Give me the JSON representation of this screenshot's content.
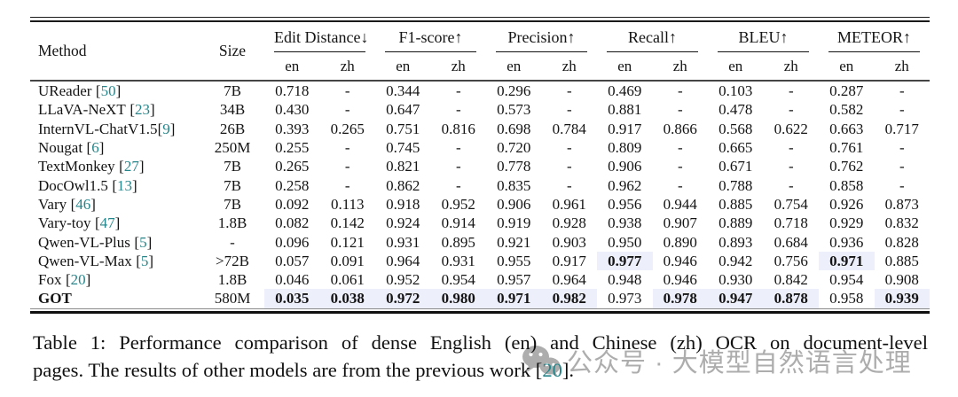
{
  "table": {
    "col_method": "Method",
    "col_size": "Size",
    "sub_en": "en",
    "sub_zh": "zh",
    "groups": [
      {
        "label": "Edit Distance",
        "arrow": "↓"
      },
      {
        "label": "F1-score",
        "arrow": "↑"
      },
      {
        "label": "Precision",
        "arrow": "↑"
      },
      {
        "label": "Recall",
        "arrow": "↑"
      },
      {
        "label": "BLEU",
        "arrow": "↑"
      },
      {
        "label": "METEOR",
        "arrow": "↑"
      }
    ],
    "cite_color": "#25858a",
    "highlight_color": "#edeffa",
    "rows": [
      {
        "method": "UReader",
        "cite": "50",
        "nospace": false,
        "bold_method": false,
        "size": "7B",
        "values": [
          "0.718",
          "-",
          "0.344",
          "-",
          "0.296",
          "-",
          "0.469",
          "-",
          "0.103",
          "-",
          "0.287",
          "-"
        ],
        "emph": []
      },
      {
        "method": "LLaVA-NeXT",
        "cite": "23",
        "nospace": false,
        "bold_method": false,
        "size": "34B",
        "values": [
          "0.430",
          "-",
          "0.647",
          "-",
          "0.573",
          "-",
          "0.881",
          "-",
          "0.478",
          "-",
          "0.582",
          "-"
        ],
        "emph": []
      },
      {
        "method": "InternVL-ChatV1.5",
        "cite": "9",
        "nospace": true,
        "bold_method": false,
        "size": "26B",
        "values": [
          "0.393",
          "0.265",
          "0.751",
          "0.816",
          "0.698",
          "0.784",
          "0.917",
          "0.866",
          "0.568",
          "0.622",
          "0.663",
          "0.717"
        ],
        "emph": []
      },
      {
        "method": "Nougat",
        "cite": "6",
        "nospace": false,
        "bold_method": false,
        "size": "250M",
        "values": [
          "0.255",
          "-",
          "0.745",
          "-",
          "0.720",
          "-",
          "0.809",
          "-",
          "0.665",
          "-",
          "0.761",
          "-"
        ],
        "emph": []
      },
      {
        "method": "TextMonkey",
        "cite": "27",
        "nospace": false,
        "bold_method": false,
        "size": "7B",
        "values": [
          "0.265",
          "-",
          "0.821",
          "-",
          "0.778",
          "-",
          "0.906",
          "-",
          "0.671",
          "-",
          "0.762",
          "-"
        ],
        "emph": []
      },
      {
        "method": "DocOwl1.5",
        "cite": "13",
        "nospace": false,
        "bold_method": false,
        "size": "7B",
        "values": [
          "0.258",
          "-",
          "0.862",
          "-",
          "0.835",
          "-",
          "0.962",
          "-",
          "0.788",
          "-",
          "0.858",
          "-"
        ],
        "emph": []
      },
      {
        "method": "Vary",
        "cite": "46",
        "nospace": false,
        "bold_method": false,
        "size": "7B",
        "values": [
          "0.092",
          "0.113",
          "0.918",
          "0.952",
          "0.906",
          "0.961",
          "0.956",
          "0.944",
          "0.885",
          "0.754",
          "0.926",
          "0.873"
        ],
        "emph": []
      },
      {
        "method": "Vary-toy",
        "cite": "47",
        "nospace": false,
        "bold_method": false,
        "size": "1.8B",
        "values": [
          "0.082",
          "0.142",
          "0.924",
          "0.914",
          "0.919",
          "0.928",
          "0.938",
          "0.907",
          "0.889",
          "0.718",
          "0.929",
          "0.832"
        ],
        "emph": []
      },
      {
        "method": "Qwen-VL-Plus",
        "cite": "5",
        "nospace": false,
        "bold_method": false,
        "size": "-",
        "values": [
          "0.096",
          "0.121",
          "0.931",
          "0.895",
          "0.921",
          "0.903",
          "0.950",
          "0.890",
          "0.893",
          "0.684",
          "0.936",
          "0.828"
        ],
        "emph": []
      },
      {
        "method": "Qwen-VL-Max",
        "cite": "5",
        "nospace": false,
        "bold_method": false,
        "size": ">72B",
        "values": [
          "0.057",
          "0.091",
          "0.964",
          "0.931",
          "0.955",
          "0.917",
          "0.977",
          "0.946",
          "0.942",
          "0.756",
          "0.971",
          "0.885"
        ],
        "emph": [
          6,
          10
        ]
      },
      {
        "method": "Fox",
        "cite": "20",
        "nospace": false,
        "bold_method": false,
        "size": "1.8B",
        "values": [
          "0.046",
          "0.061",
          "0.952",
          "0.954",
          "0.957",
          "0.964",
          "0.948",
          "0.946",
          "0.930",
          "0.842",
          "0.954",
          "0.908"
        ],
        "emph": []
      },
      {
        "method": "GOT",
        "cite": null,
        "nospace": false,
        "bold_method": true,
        "size": "580M",
        "values": [
          "0.035",
          "0.038",
          "0.972",
          "0.980",
          "0.971",
          "0.982",
          "0.973",
          "0.978",
          "0.947",
          "0.878",
          "0.958",
          "0.939"
        ],
        "emph": [
          0,
          1,
          2,
          3,
          4,
          5,
          7,
          8,
          9,
          11
        ]
      }
    ]
  },
  "caption": {
    "line1": "Table 1: Performance comparison of dense English (en) and Chinese (zh) OCR on document-level",
    "line2_pre": "pages. The results of other models are from the previous work [",
    "line2_cite": "20",
    "line2_post": "]."
  },
  "watermark": {
    "icon": "wechat-icon",
    "text": "公众号 · 大模型自然语言处理"
  }
}
